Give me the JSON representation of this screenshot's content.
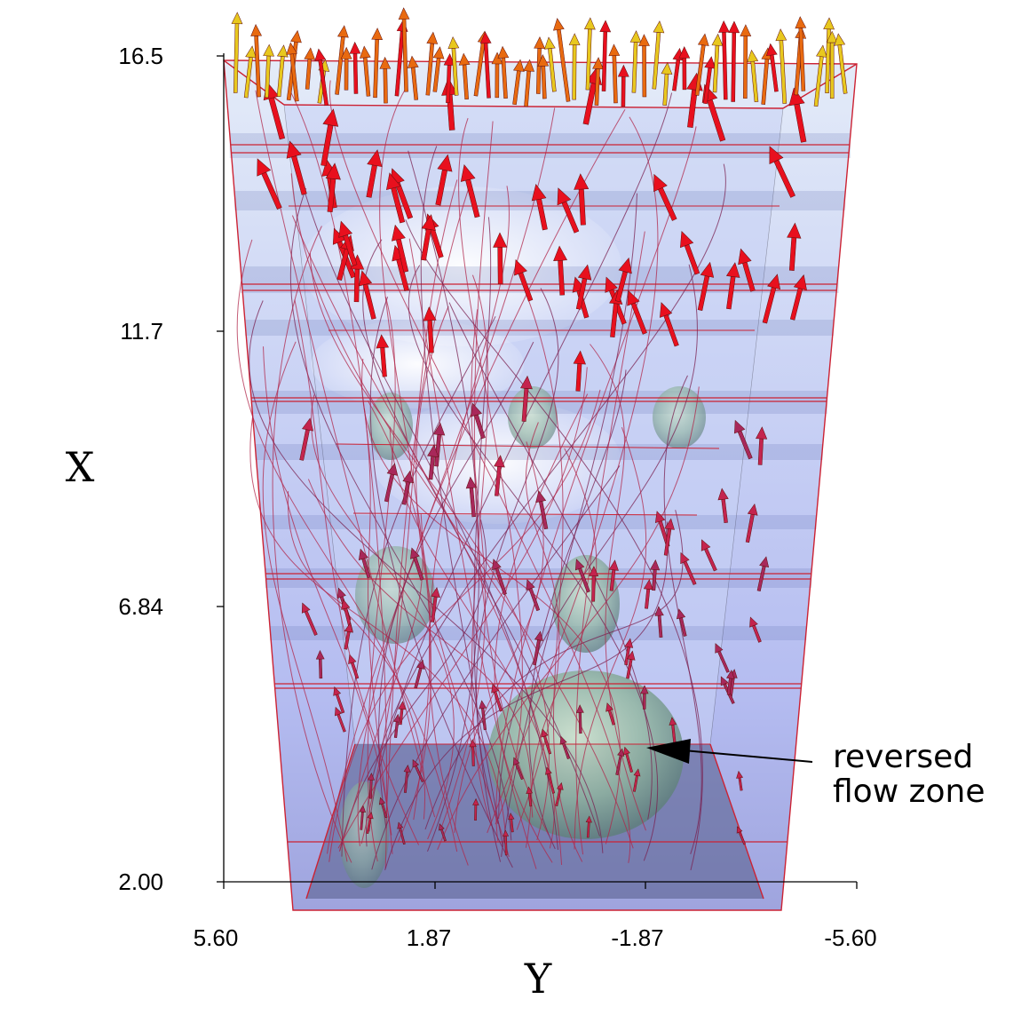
{
  "x_axis": {
    "title": "X",
    "ticks": [
      "16.5",
      "11.7",
      "6.84",
      "2.00"
    ]
  },
  "y_axis": {
    "title": "Y",
    "ticks": [
      "5.60",
      "1.87",
      "-1.87",
      "-5.60"
    ]
  },
  "annotation": {
    "line1": "reversed",
    "line2": "flow zone"
  },
  "colors": {
    "volume": "#8a9bea",
    "streamline": "#b0254a",
    "arrow_fast": "#e8101e",
    "arrow_mid": "#e86a10",
    "arrow_slow": "#e8c81e",
    "isosurface": "#7fa88a",
    "frame": "#cc2233"
  }
}
